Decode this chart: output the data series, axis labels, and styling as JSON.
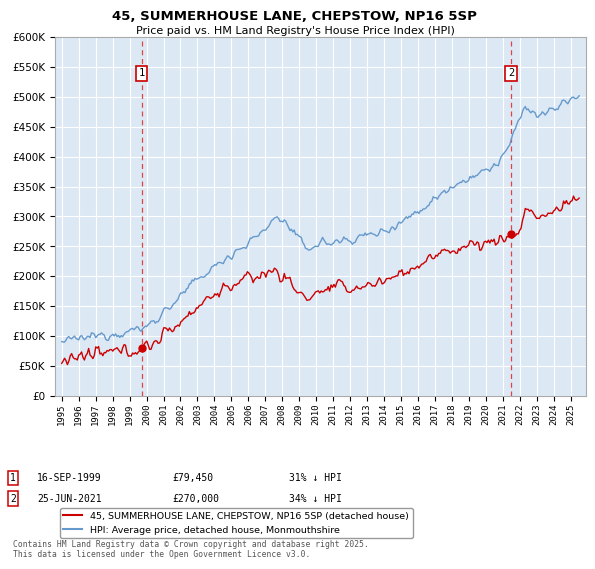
{
  "title": "45, SUMMERHOUSE LANE, CHEPSTOW, NP16 5SP",
  "subtitle": "Price paid vs. HM Land Registry's House Price Index (HPI)",
  "plot_bg_color": "#dce9f5",
  "ylim": [
    0,
    600000
  ],
  "yticks": [
    0,
    50000,
    100000,
    150000,
    200000,
    250000,
    300000,
    350000,
    400000,
    450000,
    500000,
    550000,
    600000
  ],
  "legend_label_red": "45, SUMMERHOUSE LANE, CHEPSTOW, NP16 5SP (detached house)",
  "legend_label_blue": "HPI: Average price, detached house, Monmouthshire",
  "marker1_date": "16-SEP-1999",
  "marker1_price": 79450,
  "marker1_x": 1999.71,
  "marker1_y": 79450,
  "marker2_date": "25-JUN-2021",
  "marker2_price": 270000,
  "marker2_x": 2021.48,
  "marker2_y": 270000,
  "marker1_note": "31% ↓ HPI",
  "marker2_note": "34% ↓ HPI",
  "footer": "Contains HM Land Registry data © Crown copyright and database right 2025.\nThis data is licensed under the Open Government Licence v3.0.",
  "red_color": "#cc0000",
  "blue_color": "#6699cc",
  "dashed_red_color": "#dd4444",
  "xlim_left": 1994.6,
  "xlim_right": 2025.9
}
